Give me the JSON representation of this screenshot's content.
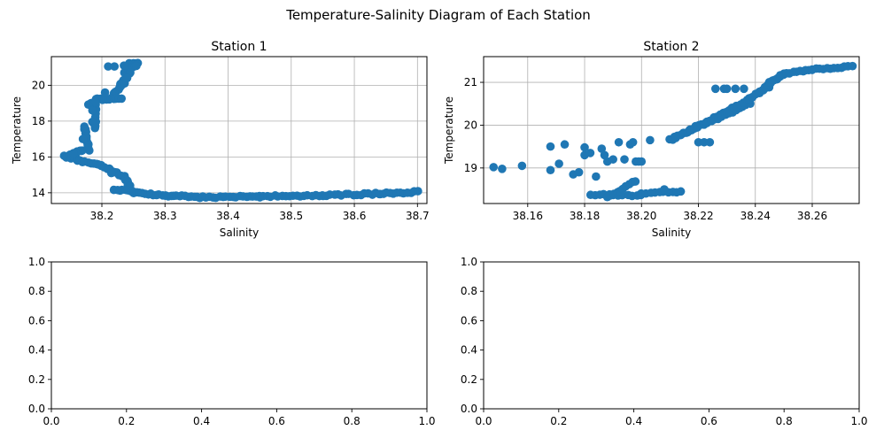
{
  "figure": {
    "title": "Temperature-Salinity Diagram of Each Station"
  },
  "colors": {
    "marker": "#1f77b4",
    "grid": "#b0b0b0",
    "axes": "#000000",
    "background": "#ffffff"
  },
  "chart_data": [
    {
      "type": "scatter",
      "title": "Station 1",
      "xlabel": "Salinity",
      "ylabel": "Temperature",
      "grid": true,
      "xlim": [
        38.12,
        38.715
      ],
      "ylim": [
        13.4,
        21.6
      ],
      "xticks": [
        38.2,
        38.3,
        38.4,
        38.5,
        38.6,
        38.7
      ],
      "xtick_labels": [
        "38.2",
        "38.3",
        "38.4",
        "38.5",
        "38.6",
        "38.7"
      ],
      "yticks": [
        14,
        16,
        18,
        20
      ],
      "ytick_labels": [
        "14",
        "16",
        "18",
        "20"
      ],
      "segments": [
        {
          "x0": 38.244,
          "y0": 21.2,
          "x1": 38.256,
          "y1": 21.25,
          "n": 8
        },
        {
          "x0": 38.236,
          "y0": 20.7,
          "x1": 38.254,
          "y1": 21.1,
          "n": 10
        },
        {
          "x0": 38.23,
          "y0": 20.1,
          "x1": 38.245,
          "y1": 20.7,
          "n": 10
        },
        {
          "x0": 38.218,
          "y0": 19.5,
          "x1": 38.235,
          "y1": 20.1,
          "n": 10
        },
        {
          "x0": 38.19,
          "y0": 19.2,
          "x1": 38.23,
          "y1": 19.3,
          "n": 12
        },
        {
          "x0": 38.19,
          "y0": 19.1,
          "x1": 38.19,
          "y1": 18.0,
          "n": 10
        },
        {
          "x0": 38.178,
          "y0": 18.9,
          "x1": 38.19,
          "y1": 19.1,
          "n": 6
        },
        {
          "x0": 38.186,
          "y0": 18.0,
          "x1": 38.19,
          "y1": 17.6,
          "n": 4
        },
        {
          "x0": 38.172,
          "y0": 17.7,
          "x1": 38.18,
          "y1": 16.4,
          "n": 14
        },
        {
          "x0": 38.17,
          "y0": 16.4,
          "x1": 38.15,
          "y1": 16.1,
          "n": 8
        },
        {
          "x0": 38.14,
          "y0": 16.05,
          "x1": 38.16,
          "y1": 15.9,
          "n": 6
        },
        {
          "x0": 38.16,
          "y0": 15.8,
          "x1": 38.2,
          "y1": 15.5,
          "n": 10
        },
        {
          "x0": 38.2,
          "y0": 15.5,
          "x1": 38.235,
          "y1": 14.9,
          "n": 10
        },
        {
          "x0": 38.235,
          "y0": 14.9,
          "x1": 38.245,
          "y1": 14.3,
          "n": 8
        },
        {
          "x0": 38.22,
          "y0": 14.2,
          "x1": 38.25,
          "y1": 14.1,
          "n": 8
        },
        {
          "x0": 38.25,
          "y0": 14.0,
          "x1": 38.3,
          "y1": 13.85,
          "n": 12
        },
        {
          "x0": 38.3,
          "y0": 13.85,
          "x1": 38.36,
          "y1": 13.75,
          "n": 14
        },
        {
          "x0": 38.36,
          "y0": 13.75,
          "x1": 38.45,
          "y1": 13.78,
          "n": 18
        },
        {
          "x0": 38.45,
          "y0": 13.8,
          "x1": 38.55,
          "y1": 13.85,
          "n": 18
        },
        {
          "x0": 38.55,
          "y0": 13.85,
          "x1": 38.64,
          "y1": 13.95,
          "n": 16
        },
        {
          "x0": 38.64,
          "y0": 13.95,
          "x1": 38.7,
          "y1": 14.05,
          "n": 12
        }
      ],
      "points": [
        {
          "x": 38.21,
          "y": 21.05
        },
        {
          "x": 38.22,
          "y": 21.05
        },
        {
          "x": 38.235,
          "y": 21.1
        },
        {
          "x": 38.24,
          "y": 20.4
        },
        {
          "x": 38.205,
          "y": 19.6
        },
        {
          "x": 38.185,
          "y": 18.6
        },
        {
          "x": 38.17,
          "y": 17.0
        },
        {
          "x": 38.155,
          "y": 16.2
        },
        {
          "x": 38.215,
          "y": 15.1
        }
      ]
    },
    {
      "type": "scatter",
      "title": "Station 2",
      "xlabel": "Salinity",
      "ylabel": "Temperature",
      "grid": true,
      "xlim": [
        38.1445,
        38.2765
      ],
      "ylim": [
        18.17,
        21.6
      ],
      "xticks": [
        38.16,
        38.18,
        38.2,
        38.22,
        38.24,
        38.26
      ],
      "xtick_labels": [
        "38.16",
        "38.18",
        "38.20",
        "38.22",
        "38.24",
        "38.26"
      ],
      "yticks": [
        19,
        20,
        21
      ],
      "ytick_labels": [
        "19",
        "20",
        "21"
      ],
      "segments": [
        {
          "x0": 38.21,
          "y0": 19.65,
          "x1": 38.222,
          "y1": 20.05,
          "n": 14
        },
        {
          "x0": 38.215,
          "y0": 19.8,
          "x1": 38.232,
          "y1": 20.4,
          "n": 16
        },
        {
          "x0": 38.222,
          "y0": 20.0,
          "x1": 38.238,
          "y1": 20.5,
          "n": 14
        },
        {
          "x0": 38.23,
          "y0": 20.3,
          "x1": 38.245,
          "y1": 20.9,
          "n": 14
        },
        {
          "x0": 38.238,
          "y0": 20.6,
          "x1": 38.25,
          "y1": 21.2,
          "n": 12
        },
        {
          "x0": 38.245,
          "y0": 21.0,
          "x1": 38.25,
          "y1": 21.2,
          "n": 6
        },
        {
          "x0": 38.25,
          "y0": 21.2,
          "x1": 38.26,
          "y1": 21.3,
          "n": 10
        },
        {
          "x0": 38.26,
          "y0": 21.3,
          "x1": 38.274,
          "y1": 21.38,
          "n": 12
        },
        {
          "x0": 38.182,
          "y0": 18.38,
          "x1": 38.2,
          "y1": 18.35,
          "n": 12
        },
        {
          "x0": 38.2,
          "y0": 18.4,
          "x1": 38.214,
          "y1": 18.45,
          "n": 10
        },
        {
          "x0": 38.188,
          "y0": 18.3,
          "x1": 38.198,
          "y1": 18.7,
          "n": 10
        }
      ],
      "points": [
        {
          "x": 38.148,
          "y": 19.02
        },
        {
          "x": 38.151,
          "y": 18.98
        },
        {
          "x": 38.158,
          "y": 19.05
        },
        {
          "x": 38.168,
          "y": 19.5
        },
        {
          "x": 38.168,
          "y": 18.95
        },
        {
          "x": 38.171,
          "y": 19.1
        },
        {
          "x": 38.173,
          "y": 19.55
        },
        {
          "x": 38.176,
          "y": 18.85
        },
        {
          "x": 38.178,
          "y": 18.9
        },
        {
          "x": 38.18,
          "y": 19.48
        },
        {
          "x": 38.18,
          "y": 19.3
        },
        {
          "x": 38.182,
          "y": 19.35
        },
        {
          "x": 38.184,
          "y": 18.8
        },
        {
          "x": 38.186,
          "y": 19.45
        },
        {
          "x": 38.187,
          "y": 19.3
        },
        {
          "x": 38.188,
          "y": 19.15
        },
        {
          "x": 38.19,
          "y": 19.2
        },
        {
          "x": 38.192,
          "y": 19.6
        },
        {
          "x": 38.194,
          "y": 19.2
        },
        {
          "x": 38.196,
          "y": 19.55
        },
        {
          "x": 38.197,
          "y": 19.6
        },
        {
          "x": 38.198,
          "y": 19.15
        },
        {
          "x": 38.199,
          "y": 19.15
        },
        {
          "x": 38.2,
          "y": 19.15
        },
        {
          "x": 38.203,
          "y": 19.65
        },
        {
          "x": 38.208,
          "y": 18.5
        },
        {
          "x": 38.212,
          "y": 19.7
        },
        {
          "x": 38.22,
          "y": 19.6
        },
        {
          "x": 38.222,
          "y": 19.6
        },
        {
          "x": 38.224,
          "y": 19.6
        },
        {
          "x": 38.226,
          "y": 20.85
        },
        {
          "x": 38.229,
          "y": 20.85
        },
        {
          "x": 38.23,
          "y": 20.85
        },
        {
          "x": 38.233,
          "y": 20.85
        },
        {
          "x": 38.236,
          "y": 20.85
        }
      ]
    },
    {
      "type": "scatter",
      "title": "",
      "xlabel": "",
      "ylabel": "",
      "grid": false,
      "xlim": [
        0,
        1
      ],
      "ylim": [
        0,
        1
      ],
      "xticks": [
        0,
        0.2,
        0.4,
        0.6,
        0.8,
        1
      ],
      "xtick_labels": [
        "0.0",
        "0.2",
        "0.4",
        "0.6",
        "0.8",
        "1.0"
      ],
      "yticks": [
        0,
        0.2,
        0.4,
        0.6,
        0.8,
        1
      ],
      "ytick_labels": [
        "0.0",
        "0.2",
        "0.4",
        "0.6",
        "0.8",
        "1.0"
      ],
      "segments": [],
      "points": []
    },
    {
      "type": "scatter",
      "title": "",
      "xlabel": "",
      "ylabel": "",
      "grid": false,
      "xlim": [
        0,
        1
      ],
      "ylim": [
        0,
        1
      ],
      "xticks": [
        0,
        0.2,
        0.4,
        0.6,
        0.8,
        1
      ],
      "xtick_labels": [
        "0.0",
        "0.2",
        "0.4",
        "0.6",
        "0.8",
        "1.0"
      ],
      "yticks": [
        0,
        0.2,
        0.4,
        0.6,
        0.8,
        1
      ],
      "ytick_labels": [
        "0.0",
        "0.2",
        "0.4",
        "0.6",
        "0.8",
        "1.0"
      ],
      "segments": [],
      "points": []
    }
  ]
}
